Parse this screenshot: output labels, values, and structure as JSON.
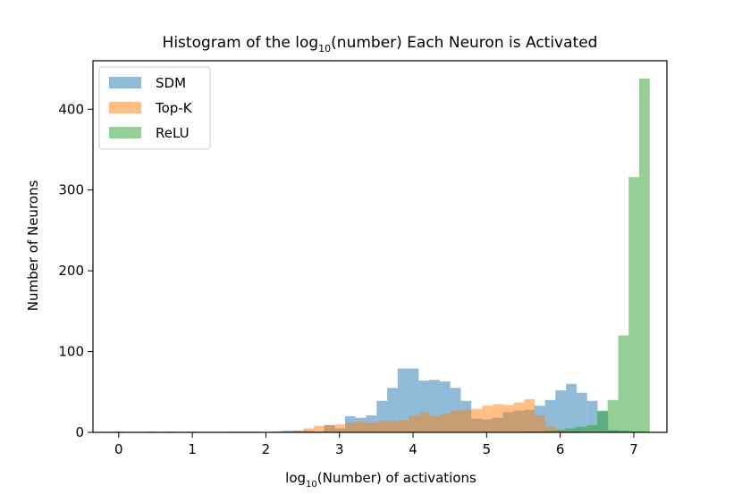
{
  "chart_data": {
    "type": "bar",
    "title_prefix": "Histogram of the log",
    "title_sub": "10",
    "title_suffix": "(number) Each Neuron is Activated",
    "xlabel_prefix": "log",
    "xlabel_sub": "10",
    "xlabel_suffix": "(Number) of activations",
    "ylabel": "Number of Neurons",
    "xlim": [
      -0.35,
      7.45
    ],
    "ylim": [
      0,
      460
    ],
    "xticks": [
      0,
      1,
      2,
      3,
      4,
      5,
      6,
      7
    ],
    "xtick_labels": [
      "0",
      "1",
      "2",
      "3",
      "4",
      "5",
      "6",
      "7"
    ],
    "yticks": [
      0,
      100,
      200,
      300,
      400
    ],
    "ytick_labels": [
      "0",
      "100",
      "200",
      "300",
      "400"
    ],
    "bin_width": 0.143,
    "legend_position": "top-left",
    "series": [
      {
        "name": "SDM",
        "color": "#1f77b4",
        "opacity": 0.5,
        "bin_start": -0.07,
        "values": [
          1,
          0,
          0,
          1,
          0,
          1,
          0,
          1,
          0,
          0,
          0,
          1,
          1,
          1,
          0,
          1,
          2,
          2,
          2,
          1,
          9,
          5,
          20,
          18,
          21,
          39,
          55,
          79,
          79,
          64,
          65,
          63,
          55,
          39,
          17,
          16,
          18,
          25,
          27,
          28,
          33,
          40,
          52,
          60,
          49,
          39,
          26,
          3,
          2,
          1,
          0,
          0,
          0,
          0,
          0
        ]
      },
      {
        "name": "Top-K",
        "color": "#ff7f0e",
        "opacity": 0.5,
        "bin_start": 2.08,
        "values": [
          1,
          1,
          2,
          5,
          8,
          9,
          10,
          12,
          13,
          12,
          14,
          14,
          15,
          21,
          25,
          20,
          23,
          27,
          28,
          29,
          33,
          35,
          34,
          37,
          41,
          21,
          7,
          3,
          1
        ]
      },
      {
        "name": "ReLU",
        "color": "#2ca02c",
        "opacity": 0.5,
        "bin_start": 5.5,
        "values": [
          1,
          1,
          2,
          3,
          5,
          7,
          9,
          27,
          40,
          120,
          316,
          438
        ]
      }
    ]
  }
}
